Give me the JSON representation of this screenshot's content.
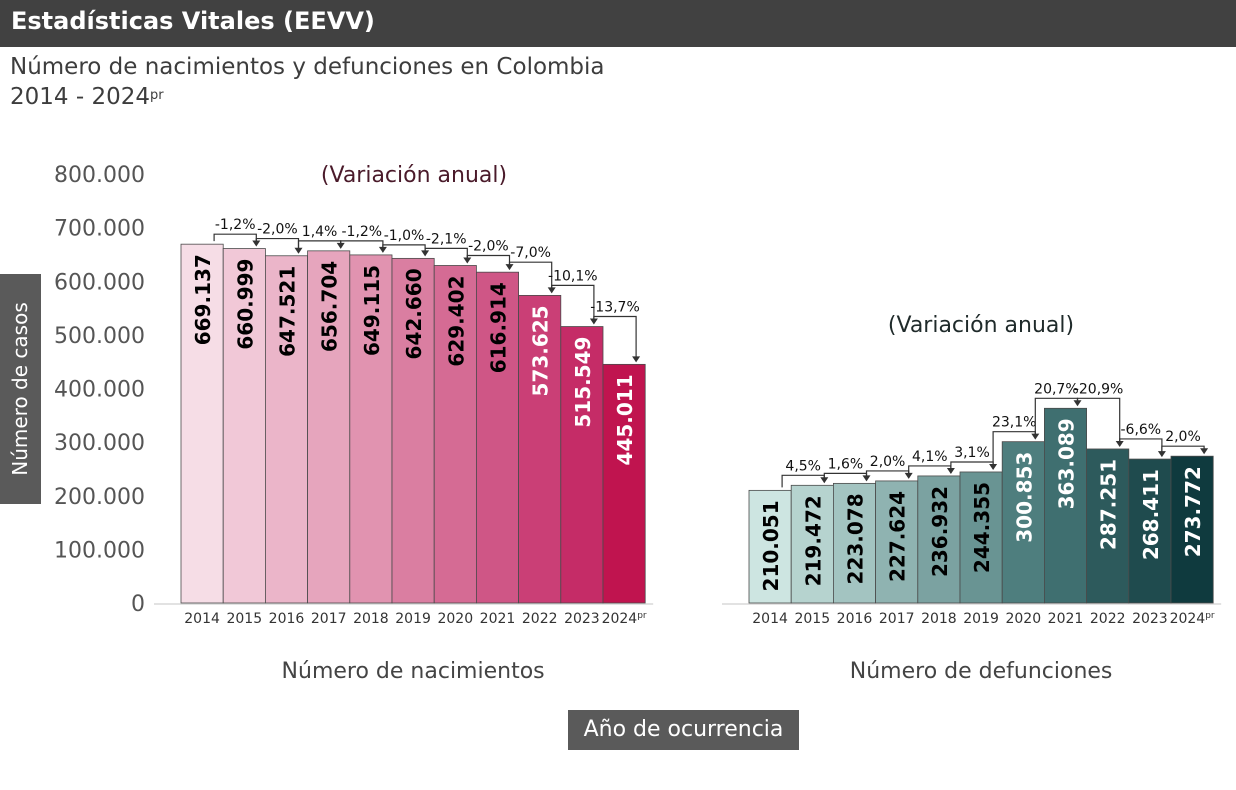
{
  "header": {
    "title": "Estadísticas Vitales (EEVV)"
  },
  "subtitle": {
    "line1": "Número de nacimientos y defunciones en Colombia",
    "line2": "2014 - 2024",
    "line2_sup": "pr"
  },
  "axes": {
    "ylabel": "Número de casos",
    "xlabel": "Año de ocurrencia"
  },
  "chart_data": [
    {
      "type": "bar",
      "title": "(Variación anual)",
      "xlabel": "Número de nacimientos",
      "categories": [
        "2014",
        "2015",
        "2016",
        "2017",
        "2018",
        "2019",
        "2020",
        "2021",
        "2022",
        "2023",
        "2024"
      ],
      "category_sup": [
        "",
        "",
        "",
        "",
        "",
        "",
        "",
        "",
        "",
        "",
        "pr"
      ],
      "values": [
        669137,
        660999,
        647521,
        656704,
        649115,
        642660,
        629402,
        616914,
        573625,
        515549,
        445011
      ],
      "value_labels": [
        "669.137",
        "660.999",
        "647.521",
        "656.704",
        "649.115",
        "642.660",
        "629.402",
        "616.914",
        "573.625",
        "515.549",
        "445.011"
      ],
      "annual_variation": [
        "-1,2%",
        "-2,0%",
        "1,4%",
        "-1,2%",
        "-1,0%",
        "-2,1%",
        "-2,0%",
        "-7,0%",
        "-10,1%",
        "-13,7%"
      ],
      "yticks": [
        "0",
        "100.000",
        "200.000",
        "300.000",
        "400.000",
        "500.000",
        "600.000",
        "700.000",
        "800.000"
      ],
      "ylim": [
        0,
        800000
      ],
      "colors": [
        "#f6dde6",
        "#f1c8d7",
        "#ebb5c9",
        "#e6a5bd",
        "#e193b0",
        "#da7ea1",
        "#d56b94",
        "#cf5686",
        "#ca3f76",
        "#c52c67",
        "#c0144f"
      ],
      "label_colors": [
        "#000000",
        "#000000",
        "#000000",
        "#000000",
        "#000000",
        "#000000",
        "#000000",
        "#000000",
        "#ffffff",
        "#ffffff",
        "#ffffff"
      ]
    },
    {
      "type": "bar",
      "title": "(Variación anual)",
      "xlabel": "Número de defunciones",
      "categories": [
        "2014",
        "2015",
        "2016",
        "2017",
        "2018",
        "2019",
        "2020",
        "2021",
        "2022",
        "2023",
        "2024"
      ],
      "category_sup": [
        "",
        "",
        "",
        "",
        "",
        "",
        "",
        "",
        "",
        "",
        "pr"
      ],
      "values": [
        210051,
        219472,
        223078,
        227624,
        236932,
        244355,
        300853,
        363089,
        287251,
        268411,
        273772
      ],
      "value_labels": [
        "210.051",
        "219.472",
        "223.078",
        "227.624",
        "236.932",
        "244.355",
        "300.853",
        "363.089",
        "287.251",
        "268.411",
        "273.772"
      ],
      "annual_variation": [
        "4,5%",
        "1,6%",
        "2,0%",
        "4,1%",
        "3,1%",
        "23,1%",
        "20,7%",
        "-20,9%",
        "-6,6%",
        "2,0%"
      ],
      "colors": [
        "#cde5e1",
        "#b6d3cf",
        "#a3c4c1",
        "#8fb3b1",
        "#7ba2a1",
        "#699493",
        "#4e7e7e",
        "#3f6f70",
        "#2d5a5c",
        "#1f4b4e",
        "#0f3a3e"
      ],
      "label_colors": [
        "#000000",
        "#000000",
        "#000000",
        "#000000",
        "#000000",
        "#000000",
        "#ffffff",
        "#ffffff",
        "#ffffff",
        "#ffffff",
        "#ffffff"
      ]
    }
  ]
}
